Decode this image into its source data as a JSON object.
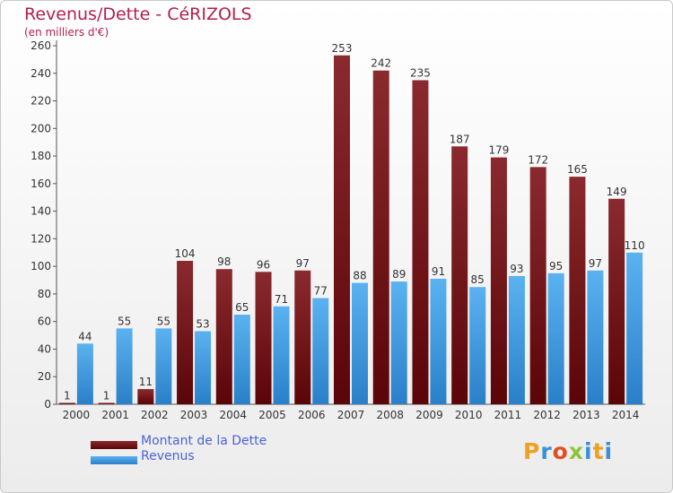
{
  "header": {
    "title": "Revenus/Dette - CéRIZOLS",
    "subtitle": "(en milliers d'€)"
  },
  "legend": {
    "items": [
      {
        "label": "Montant de la Dette",
        "color": "#6e1216"
      },
      {
        "label": "Revenus",
        "color": "#3d9be0"
      }
    ]
  },
  "logo": {
    "letters": [
      "P",
      "r",
      "o",
      "x",
      "i",
      "t",
      "i"
    ],
    "colors": [
      "#f0a020",
      "#3b8fd8",
      "#e05020",
      "#8cc63f",
      "#3b8fd8",
      "#f0a020",
      "#3b8fd8"
    ]
  },
  "chart_data": {
    "type": "bar",
    "categories": [
      "2000",
      "2001",
      "2002",
      "2003",
      "2004",
      "2005",
      "2006",
      "2007",
      "2008",
      "2009",
      "2010",
      "2011",
      "2012",
      "2013",
      "2014"
    ],
    "series": [
      {
        "name": "Montant de la Dette",
        "color": "#6e1216",
        "values": [
          1,
          1,
          11,
          104,
          98,
          96,
          97,
          253,
          242,
          235,
          187,
          179,
          172,
          165,
          149
        ]
      },
      {
        "name": "Revenus",
        "color": "#3d9be0",
        "values": [
          44,
          55,
          55,
          53,
          65,
          71,
          77,
          88,
          89,
          91,
          85,
          93,
          95,
          97,
          110
        ]
      }
    ],
    "ylim": [
      0,
      260
    ],
    "yticks": [
      0,
      20,
      40,
      60,
      80,
      100,
      120,
      140,
      160,
      180,
      200,
      220,
      240,
      260
    ],
    "grid": false,
    "legend_position": "bottom-left"
  }
}
